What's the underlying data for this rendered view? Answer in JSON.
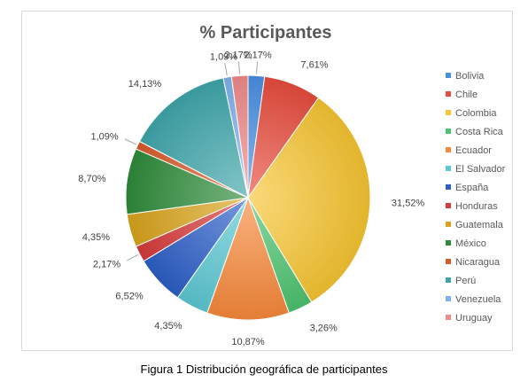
{
  "caption": "Figura 1 Distribución geográfica de participantes",
  "chart_data": {
    "type": "pie",
    "title": "% Participantes",
    "legend_position": "right",
    "categories": [
      "Bolivia",
      "Chile",
      "Colombia",
      "Costa Rica",
      "Ecuador",
      "El Salvador",
      "España",
      "Honduras",
      "Guatemala",
      "México",
      "Nicaragua",
      "Perú",
      "Venezuela",
      "Uruguay"
    ],
    "values": [
      2.17,
      7.61,
      31.52,
      3.26,
      10.87,
      4.35,
      6.52,
      2.17,
      4.35,
      8.7,
      1.09,
      14.13,
      1.09,
      2.17
    ],
    "data_labels": [
      "2,17%",
      "7,61%",
      "31,52%",
      "3,26%",
      "10,87%",
      "4,35%",
      "6,52%",
      "2,17%",
      "4,35%",
      "8,70%",
      "1,09%",
      "14,13%",
      "1,09%",
      "2,17%"
    ],
    "colors": [
      "#4a90e2",
      "#e84c3d",
      "#f7c531",
      "#4cc36e",
      "#f7893a",
      "#5bc8d3",
      "#2c5fc7",
      "#d73a3a",
      "#d9a41c",
      "#2e8b3a",
      "#d85a2a",
      "#3ea6ab",
      "#7fb2ec",
      "#f08a8a"
    ]
  }
}
